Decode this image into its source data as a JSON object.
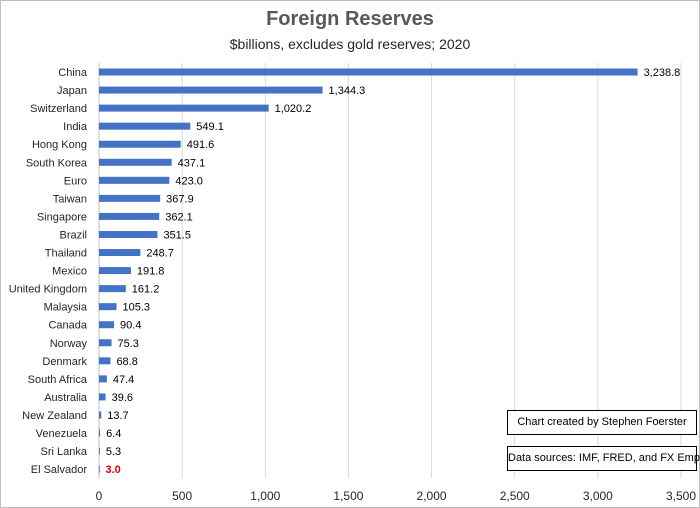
{
  "chart_data": {
    "type": "bar",
    "orientation": "horizontal",
    "title": "Foreign Reserves",
    "subtitle": "$billions, excludes gold reserves; 2020",
    "categories": [
      "China",
      "Japan",
      "Switzerland",
      "India",
      "Hong Kong",
      "South Korea",
      "Euro",
      "Taiwan",
      "Singapore",
      "Brazil",
      "Thailand",
      "Mexico",
      "United Kingdom",
      "Malaysia",
      "Canada",
      "Norway",
      "Denmark",
      "South Africa",
      "Australia",
      "New Zealand",
      "Venezuela",
      "Sri Lanka",
      "El Salvador"
    ],
    "values": [
      3238.8,
      1344.3,
      1020.2,
      549.1,
      491.6,
      437.1,
      423.0,
      367.9,
      362.1,
      351.5,
      248.7,
      191.8,
      161.2,
      105.3,
      90.4,
      75.3,
      68.8,
      47.4,
      39.6,
      13.7,
      6.4,
      5.3,
      3.0
    ],
    "value_labels": [
      "3,238.8",
      "1,344.3",
      "1,020.2",
      "549.1",
      "491.6",
      "437.1",
      "423.0",
      "367.9",
      "362.1",
      "351.5",
      "248.7",
      "191.8",
      "161.2",
      "105.3",
      "90.4",
      "75.3",
      "68.8",
      "47.4",
      "39.6",
      "13.7",
      "6.4",
      "5.3",
      "3.0"
    ],
    "xlim": [
      0,
      3500
    ],
    "x_ticks": [
      0,
      500,
      1000,
      1500,
      2000,
      2500,
      3000,
      3500
    ],
    "x_tick_labels": [
      "0",
      "500",
      "1,000",
      "1,500",
      "2,000",
      "2,500",
      "3,000",
      "3,500"
    ],
    "xlabel": "",
    "ylabel": "",
    "grid": "vertical",
    "legend": "none",
    "highlight_category": "El Salvador"
  },
  "notes": {
    "credit": "Chart created by Stephen Foerster",
    "sources": "Data sources: IMF, FRED, and FX Empire"
  },
  "colors": {
    "bar": "#4472C4",
    "grid": "#d9d9d9",
    "highlight_label": "#e00000",
    "title": "#595959",
    "text": "#262626"
  }
}
